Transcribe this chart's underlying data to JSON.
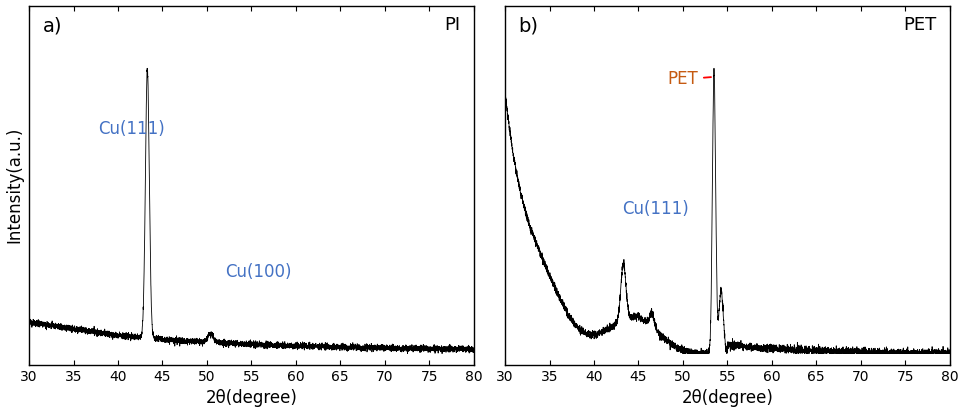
{
  "xlim": [
    30,
    80
  ],
  "xlabel": "2θ(degree)",
  "ylabel": "Intensity(a.u.)",
  "panel_a_label": "a)",
  "panel_b_label": "b)",
  "panel_a_tag": "PI",
  "panel_b_tag": "PET",
  "annotation_a_cu111": "Cu(111)",
  "annotation_a_cu100": "Cu(100)",
  "annotation_b_cu111": "Cu(111)",
  "annotation_b_pet": "PET",
  "text_color_cu": "#4472C4",
  "text_color_pet": "#C55A11",
  "line_color": "#000000",
  "background_color": "#ffffff",
  "dashed_line_color": "#FF0000",
  "tick_label_size": 10,
  "axis_label_size": 12,
  "tag_fontsize": 13,
  "annot_fontsize": 12,
  "xticks": [
    30,
    35,
    40,
    45,
    50,
    55,
    60,
    65,
    70,
    75,
    80
  ]
}
